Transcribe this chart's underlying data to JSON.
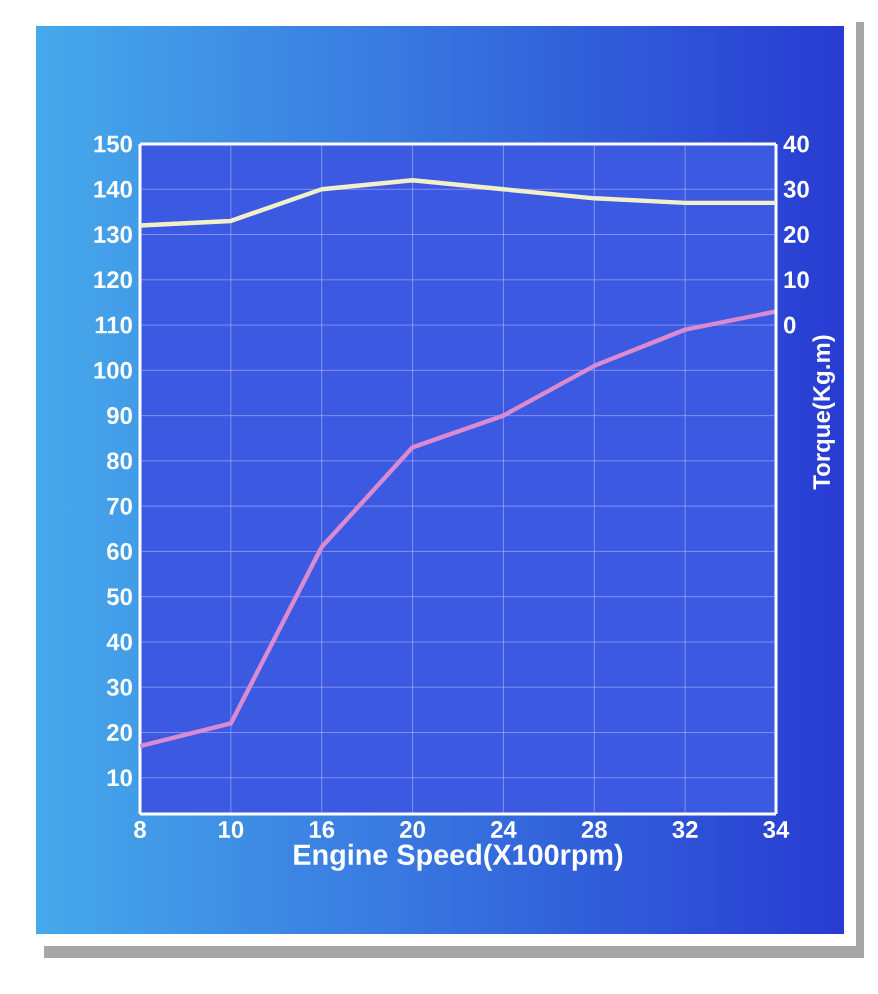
{
  "chart_data": {
    "type": "line",
    "xlabel": "Engine Speed(X100rpm)",
    "y2label": "Torque(Kg.m)",
    "categories": [
      "8",
      "10",
      "16",
      "20",
      "24",
      "28",
      "32",
      "34"
    ],
    "ylim": [
      2,
      150
    ],
    "yticks": [
      10,
      20,
      30,
      40,
      50,
      60,
      70,
      80,
      90,
      100,
      110,
      120,
      130,
      140,
      150
    ],
    "y2lim": [
      -108,
      40
    ],
    "y2ticks": [
      0,
      10,
      20,
      30,
      40
    ],
    "grid": true,
    "series": [
      {
        "color": "#d98ad0",
        "values": [
          17,
          22,
          61,
          83,
          90,
          101,
          109,
          113
        ]
      },
      {
        "color": "#f2f0c8",
        "axis": "y2",
        "values": [
          22,
          23,
          30,
          32,
          30,
          28,
          27,
          27
        ]
      }
    ]
  }
}
